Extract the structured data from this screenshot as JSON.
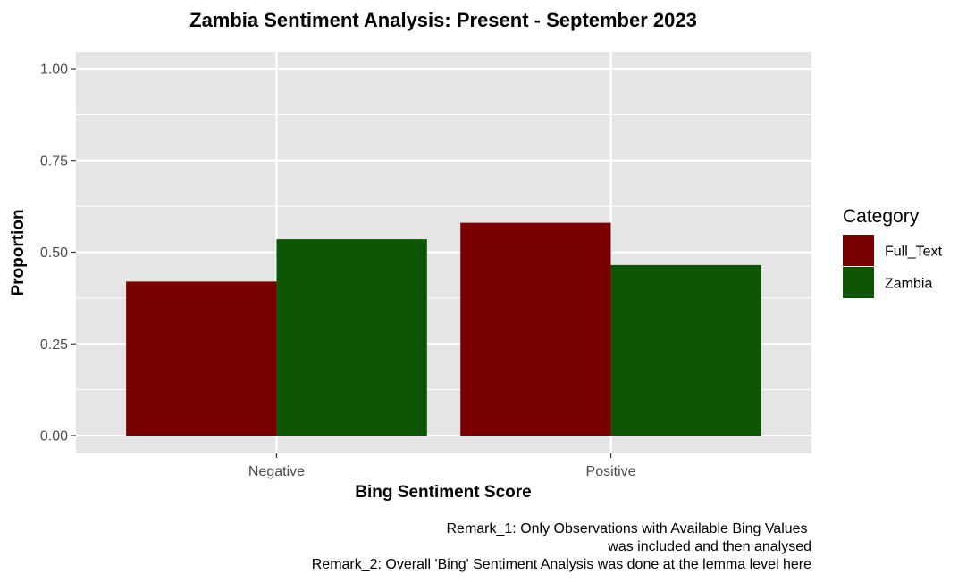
{
  "chart_data": {
    "type": "bar",
    "title": "Zambia Sentiment Analysis: Present - September 2023",
    "xlabel": "Bing Sentiment Score",
    "ylabel": "Proportion",
    "categories": [
      "Negative",
      "Positive"
    ],
    "series": [
      {
        "name": "Full_Text",
        "color": "#7a0000",
        "values": [
          0.42,
          0.58
        ]
      },
      {
        "name": "Zambia",
        "color": "#0b5503",
        "values": [
          0.535,
          0.465
        ]
      }
    ],
    "ylim": [
      0,
      1
    ],
    "yticks": [
      0,
      0.25,
      0.5,
      0.75,
      1
    ],
    "ytick_labels": [
      "0.00",
      "0.25",
      "0.50",
      "0.75",
      "1.00"
    ],
    "grid": true,
    "panel_background": "#e5e5e5",
    "grid_color": "#ffffff",
    "legend": {
      "title": "Category",
      "placement": "right"
    },
    "caption": [
      "Remark_1: Only Observations with Available Bing Values ",
      "was included and then analysed",
      "Remark_2: Overall 'Bing' Sentiment Analysis was done at the lemma level here"
    ]
  }
}
